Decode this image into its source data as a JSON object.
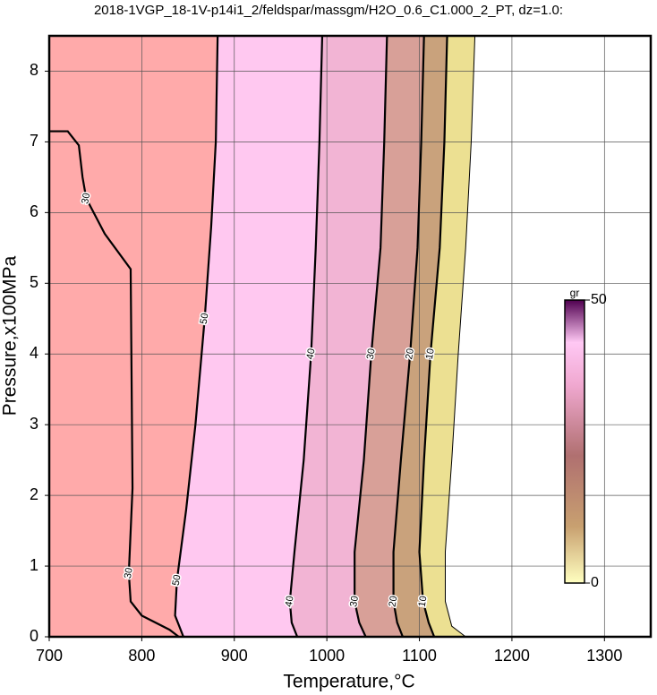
{
  "chart_data": {
    "type": "contour",
    "title": "2018-1VGP_18-1V-p14i1_2/feldspar/massgm/H2O_0.6_C1.000_2_PT, dz=1.0:",
    "x_label": "Temperature,°C",
    "y_label": "Pressure,x100MPa",
    "xlim": [
      700,
      1350
    ],
    "ylim": [
      0,
      8.5
    ],
    "xticks": [
      700,
      800,
      900,
      1000,
      1100,
      1200,
      1300
    ],
    "yticks": [
      0,
      1,
      2,
      3,
      4,
      5,
      6,
      7,
      8
    ],
    "grid": true,
    "contours": [
      {
        "level": 30,
        "labeled": true,
        "fill": null,
        "x": [
          700,
          720,
          732,
          736,
          740,
          760,
          788,
          790,
          786,
          788,
          800,
          830,
          840
        ],
        "y": [
          7.15,
          7.15,
          6.95,
          6.5,
          6.2,
          5.7,
          5.2,
          2.1,
          0.9,
          0.5,
          0.3,
          0.1,
          0
        ]
      },
      {
        "level": 50,
        "labeled": true,
        "fill": "#ffaaaa",
        "x": [
          882,
          880,
          875,
          868,
          858,
          848,
          838,
          836,
          845
        ],
        "y": [
          8.5,
          7,
          5.8,
          4.5,
          3,
          1.8,
          0.8,
          0.3,
          0
        ]
      },
      {
        "level": 40,
        "labeled": true,
        "fill": "#ffc8f0",
        "x": [
          995,
          992,
          988,
          983,
          975,
          965,
          960,
          962,
          968
        ],
        "y": [
          8.5,
          7,
          5.5,
          4,
          2.5,
          1.2,
          0.5,
          0.2,
          0
        ]
      },
      {
        "level": 30,
        "labeled": true,
        "fill": "#f2b4d4",
        "x": [
          1065,
          1062,
          1058,
          1048,
          1040,
          1030,
          1030,
          1035,
          1042
        ],
        "y": [
          8.5,
          7,
          5.5,
          4,
          2.5,
          1.2,
          0.5,
          0.2,
          0
        ]
      },
      {
        "level": 20,
        "labeled": true,
        "fill": "#d8a098",
        "x": [
          1105,
          1102,
          1098,
          1090,
          1080,
          1072,
          1072,
          1076,
          1082
        ],
        "y": [
          8.5,
          7,
          5.5,
          4,
          2.5,
          1.2,
          0.5,
          0.2,
          0
        ]
      },
      {
        "level": 10,
        "labeled": true,
        "fill": "#c9a27c",
        "x": [
          1130,
          1127,
          1122,
          1112,
          1105,
          1100,
          1104,
          1110,
          1116
        ],
        "y": [
          8.5,
          7,
          5.5,
          4,
          2.5,
          1.2,
          0.5,
          0.2,
          0
        ]
      },
      {
        "level": 0,
        "labeled": false,
        "fill": "#ece092",
        "x": [
          1160,
          1156,
          1150,
          1142,
          1135,
          1128,
          1128,
          1135,
          1150
        ],
        "y": [
          8.5,
          7,
          5.5,
          4,
          2.5,
          1.2,
          0.5,
          0.15,
          0
        ]
      }
    ],
    "colorbar": {
      "label": "gr",
      "range": [
        0,
        50
      ],
      "ticks": [
        0,
        50
      ]
    }
  }
}
